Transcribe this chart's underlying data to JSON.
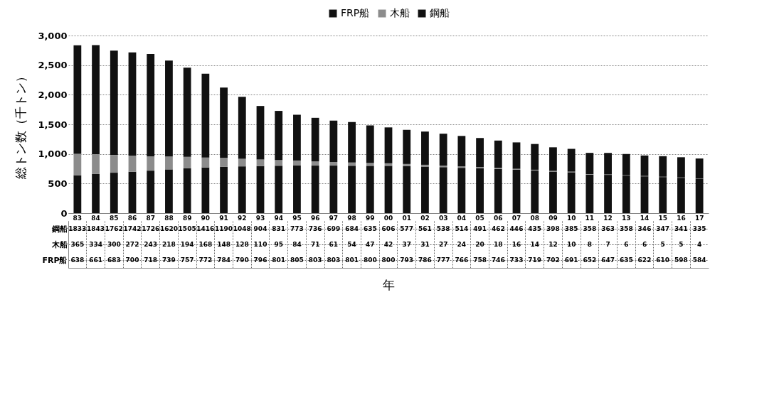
{
  "chart_data": {
    "type": "bar",
    "stacked": true,
    "ylabel": "総トン数（千トン）",
    "xlabel": "年",
    "categories": [
      "83",
      "84",
      "85",
      "86",
      "87",
      "88",
      "89",
      "90",
      "91",
      "92",
      "93",
      "94",
      "95",
      "96",
      "97",
      "98",
      "99",
      "00",
      "01",
      "02",
      "03",
      "04",
      "05",
      "06",
      "07",
      "08",
      "09",
      "10",
      "11",
      "12",
      "13",
      "14",
      "15",
      "16",
      "17"
    ],
    "series": [
      {
        "name": "FRP船",
        "color": "#111111",
        "values": [
          638,
          661,
          683,
          700,
          718,
          739,
          757,
          772,
          784,
          790,
          796,
          801,
          805,
          803,
          803,
          801,
          800,
          800,
          793,
          786,
          777,
          766,
          758,
          746,
          733,
          719,
          702,
          691,
          652,
          647,
          635,
          622,
          610,
          598,
          584
        ]
      },
      {
        "name": "木船",
        "color": "#8c8c8c",
        "values": [
          365,
          334,
          300,
          272,
          243,
          218,
          194,
          168,
          148,
          128,
          110,
          95,
          84,
          71,
          61,
          54,
          47,
          42,
          37,
          31,
          27,
          24,
          20,
          18,
          16,
          14,
          12,
          10,
          8,
          7,
          6,
          6,
          5,
          5,
          4
        ]
      },
      {
        "name": "鋼船",
        "color": "#111111",
        "values": [
          1833,
          1843,
          1762,
          1742,
          1726,
          1620,
          1505,
          1416,
          1190,
          1048,
          904,
          831,
          773,
          736,
          699,
          684,
          635,
          606,
          577,
          561,
          538,
          514,
          491,
          462,
          446,
          435,
          398,
          385,
          358,
          363,
          358,
          346,
          347,
          341,
          335
        ]
      }
    ],
    "ylim": [
      0,
      3000
    ],
    "yticks": [
      {
        "value": 0,
        "label": "0"
      },
      {
        "value": 500,
        "label": "500"
      },
      {
        "value": 1000,
        "label": "1,000"
      },
      {
        "value": 1500,
        "label": "1,500"
      },
      {
        "value": 2000,
        "label": "2,000"
      },
      {
        "value": 2500,
        "label": "2,500"
      },
      {
        "value": 3000,
        "label": "3,000"
      }
    ],
    "grid": "y",
    "legend": "top",
    "data_labels": true
  }
}
